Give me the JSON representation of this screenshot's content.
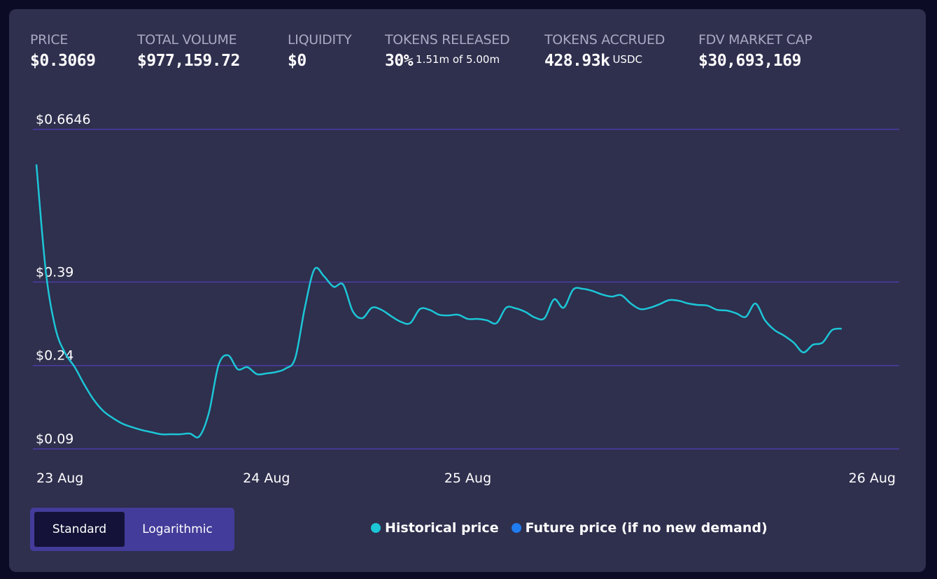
{
  "stats": [
    {
      "label": "PRICE",
      "value": "$0.3069"
    },
    {
      "label": "TOTAL VOLUME",
      "value": "$977,159.72"
    },
    {
      "label": "LIQUIDITY",
      "value": "$0"
    },
    {
      "label": "TOKENS RELEASED",
      "value": "30%",
      "detail": "1.51m of 5.00m"
    },
    {
      "label": "TOKENS ACCRUED",
      "value": "428.93k",
      "detail": "USDC"
    },
    {
      "label": "FDV MARKET CAP",
      "value": "$30,693,169"
    }
  ],
  "scale_options": [
    "Standard",
    "Logarithmic"
  ],
  "selected_scale": 0,
  "chart_data": {
    "type": "line",
    "categories": [
      "23 Aug",
      null,
      null,
      null,
      null,
      null,
      null,
      null,
      null,
      null,
      null,
      null,
      null,
      null,
      null,
      null,
      null,
      null,
      null,
      null,
      null,
      null,
      null,
      null,
      "24 Aug",
      null,
      null,
      null,
      null,
      null,
      null,
      null,
      null,
      null,
      null,
      null,
      null,
      null,
      null,
      null,
      null,
      null,
      null,
      null,
      null,
      "25 Aug",
      null,
      null,
      null,
      null,
      null,
      null,
      null,
      null,
      null,
      null,
      null,
      null,
      null,
      null,
      null,
      null,
      null,
      null,
      null,
      null,
      null,
      null,
      null,
      null,
      null,
      null,
      null,
      null,
      null,
      null,
      null,
      null,
      null,
      null,
      null,
      null,
      null,
      null,
      null,
      null,
      null,
      null,
      null,
      null,
      "26 Aug"
    ],
    "series": [
      {
        "name": "Historical price",
        "color": "#1cc6d6",
        "values": [
          0.6016,
          0.4068,
          0.3062,
          0.2622,
          0.2371,
          0.2056,
          0.178,
          0.1579,
          0.1453,
          0.1353,
          0.129,
          0.1239,
          0.1202,
          0.1164,
          0.1164,
          0.1164,
          0.1177,
          0.1126,
          0.1554,
          0.2408,
          0.2584,
          0.2333,
          0.2371,
          0.2245,
          0.2258,
          0.2283,
          0.2346,
          0.2534,
          0.3439,
          0.413,
          0.4005,
          0.3816,
          0.3854,
          0.3376,
          0.3251,
          0.3439,
          0.3401,
          0.3288,
          0.3188,
          0.3163,
          0.3414,
          0.3401,
          0.3313,
          0.3301,
          0.3313,
          0.3238,
          0.3238,
          0.3213,
          0.3163,
          0.3439,
          0.3427,
          0.3364,
          0.3263,
          0.3251,
          0.359,
          0.3439,
          0.3766,
          0.3779,
          0.3741,
          0.3678,
          0.364,
          0.3665,
          0.3515,
          0.3414,
          0.3439,
          0.3502,
          0.3577,
          0.3565,
          0.3515,
          0.3489,
          0.3477,
          0.3401,
          0.3389,
          0.3339,
          0.3276,
          0.3515,
          0.3213,
          0.3037,
          0.2936,
          0.2811,
          0.2635,
          0.2773,
          0.2811,
          0.3037,
          0.3062,
          null,
          null,
          null,
          null,
          null,
          null
        ]
      },
      {
        "name": "Future price (if no new demand)",
        "color": "#1f7cf2",
        "values": [
          null,
          null,
          null,
          null,
          null,
          null,
          null,
          null,
          null,
          null,
          null,
          null,
          null,
          null,
          null,
          null,
          null,
          null,
          null,
          null,
          null,
          null,
          null,
          null,
          null,
          null,
          null,
          null,
          null,
          null,
          null,
          null,
          null,
          null,
          null,
          null,
          null,
          null,
          null,
          null,
          null,
          null,
          null,
          null,
          null,
          null,
          null,
          null,
          null,
          null,
          null,
          null,
          null,
          null,
          null,
          null,
          null,
          null,
          null,
          null,
          null,
          null,
          null,
          null,
          null,
          null,
          null,
          null,
          null,
          null,
          null,
          null,
          null,
          null,
          null,
          null,
          null,
          null,
          null,
          null,
          null,
          null,
          null,
          null,
          null,
          null,
          null,
          null,
          null,
          null,
          null
        ]
      }
    ],
    "ylim": [
      0.09,
      0.6646
    ],
    "yticks": [
      {
        "value": 0.09,
        "label": "$0.09"
      },
      {
        "value": 0.24,
        "label": "$0.24"
      },
      {
        "value": 0.39,
        "label": "$0.39"
      },
      {
        "value": 0.6646,
        "label": "$0.6646"
      }
    ],
    "grid": true,
    "grid_color": "#4b3fa6"
  }
}
